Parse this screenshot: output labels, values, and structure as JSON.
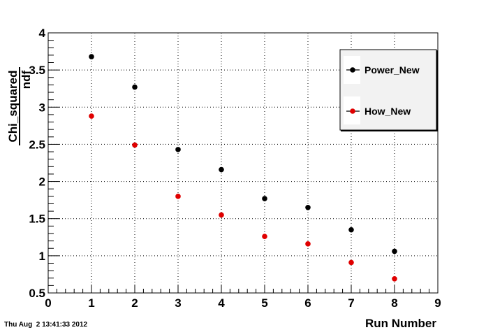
{
  "timestamp": "Thu Aug  2 13:41:33 2012",
  "chart_data": {
    "type": "scatter",
    "xlabel": "Run Number",
    "ylabel_numerator": "Chi_squared",
    "ylabel_denominator": "ndf",
    "xlim": [
      0,
      9
    ],
    "ylim": [
      0.5,
      4
    ],
    "xticks": [
      0,
      1,
      2,
      3,
      4,
      5,
      6,
      7,
      8,
      9
    ],
    "yticks": [
      0.5,
      1,
      1.5,
      2,
      2.5,
      3,
      3.5,
      4
    ],
    "grid": true,
    "legend_position": "top-right",
    "series": [
      {
        "name": "Power_New",
        "color": "#000000",
        "x": [
          1,
          2,
          3,
          4,
          5,
          6,
          7,
          8
        ],
        "y": [
          3.68,
          3.27,
          2.43,
          2.16,
          1.77,
          1.65,
          1.35,
          1.06
        ]
      },
      {
        "name": "How_New",
        "color": "#e00000",
        "x": [
          1,
          2,
          3,
          4,
          5,
          6,
          7,
          8
        ],
        "y": [
          2.88,
          2.49,
          1.8,
          1.55,
          1.26,
          1.16,
          0.91,
          0.69
        ]
      }
    ]
  }
}
